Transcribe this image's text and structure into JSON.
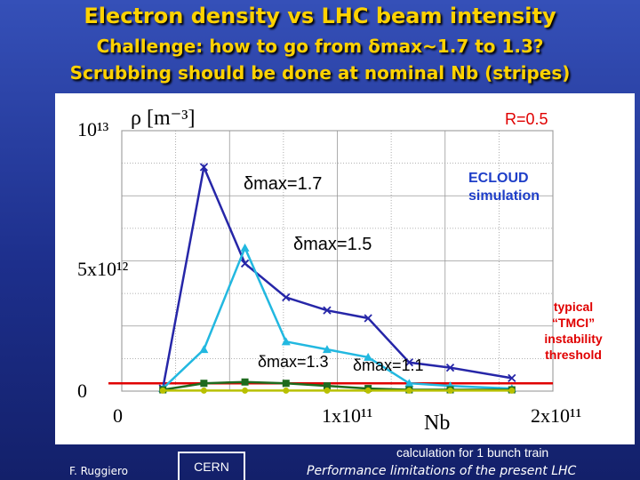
{
  "header": {
    "line1": "Electron density vs LHC beam intensity",
    "line2": "Challenge: how to go from δmax~1.7 to 1.3?",
    "line3": "Scrubbing should be done at nominal Nb (stripes)"
  },
  "footer": {
    "author": "F. Ruggiero",
    "logo": "CERN",
    "note": "calculation for 1 bunch train",
    "subtitle": "Performance limitations of the present LHC"
  },
  "chart_data": {
    "type": "line",
    "ylabel": "ρ [m⁻³]",
    "xlabel": "Nb",
    "y_ticks": [
      "10¹³",
      "5x10¹²",
      "0"
    ],
    "x_ticks": [
      "0",
      "1x10¹¹",
      "2x10¹¹"
    ],
    "xlim": [
      0,
      210000000000.0
    ],
    "ylim": [
      0,
      10000000000000.0
    ],
    "grid": true,
    "annotations": {
      "r_value": "R=0.5",
      "ecloud": [
        "ECLOUD",
        "simulation"
      ],
      "tmci": [
        "typical",
        "“TMCI”",
        "instability",
        "threshold"
      ]
    },
    "series": [
      {
        "name": "δmax=1.7",
        "color": "#2626a8",
        "marker": "x",
        "x": [
          20000000000.0,
          40000000000.0,
          60000000000.0,
          80000000000.0,
          100000000000.0,
          120000000000.0,
          140000000000.0,
          160000000000.0,
          190000000000.0
        ],
        "y": [
          100000000000.0,
          8600000000000.0,
          4900000000000.0,
          3600000000000.0,
          3100000000000.0,
          2800000000000.0,
          1100000000000.0,
          900000000000.0,
          500000000000.0
        ]
      },
      {
        "name": "δmax=1.5",
        "color": "#22b8e0",
        "marker": "triangle",
        "x": [
          20000000000.0,
          40000000000.0,
          60000000000.0,
          80000000000.0,
          100000000000.0,
          120000000000.0,
          140000000000.0,
          160000000000.0,
          190000000000.0
        ],
        "y": [
          100000000000.0,
          1600000000000.0,
          5500000000000.0,
          1900000000000.0,
          1600000000000.0,
          1300000000000.0,
          300000000000.0,
          200000000000.0,
          100000000000.0
        ]
      },
      {
        "name": "δmax=1.3",
        "color": "#1e6b1e",
        "marker": "square",
        "x": [
          20000000000.0,
          40000000000.0,
          60000000000.0,
          80000000000.0,
          100000000000.0,
          120000000000.0,
          140000000000.0,
          160000000000.0,
          190000000000.0
        ],
        "y": [
          50000000000.0,
          300000000000.0,
          350000000000.0,
          300000000000.0,
          200000000000.0,
          100000000000.0,
          50000000000.0,
          50000000000.0,
          50000000000.0
        ]
      },
      {
        "name": "δmax=1.1",
        "color": "#b8c000",
        "marker": "circle",
        "x": [
          20000000000.0,
          40000000000.0,
          60000000000.0,
          80000000000.0,
          100000000000.0,
          120000000000.0,
          140000000000.0,
          160000000000.0,
          190000000000.0
        ],
        "y": [
          20000000000.0,
          20000000000.0,
          20000000000.0,
          20000000000.0,
          20000000000.0,
          20000000000.0,
          20000000000.0,
          20000000000.0,
          20000000000.0
        ]
      }
    ],
    "threshold": {
      "y": 300000000000.0,
      "color": "#e00000"
    }
  }
}
